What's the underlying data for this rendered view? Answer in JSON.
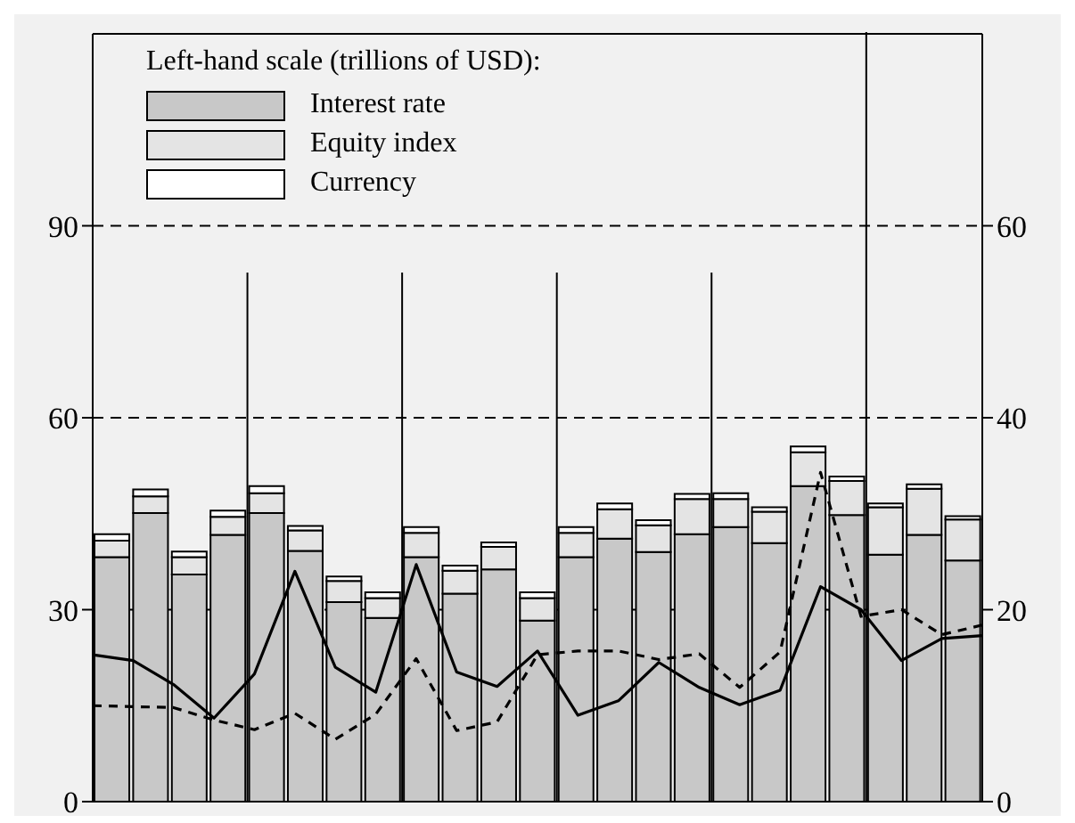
{
  "chart_data": [
    {
      "type": "bar",
      "legend_title": "Left-hand scale (trillions of USD):",
      "stacked": true,
      "categories": [
        null,
        null,
        null,
        null,
        null,
        null,
        null,
        null,
        null,
        null,
        null,
        null,
        null,
        null,
        null,
        null,
        null,
        null,
        null,
        null,
        null,
        null,
        null
      ],
      "tick_labels": "y",
      "ylim": [
        0,
        120
      ],
      "yticks": [
        0,
        30,
        60,
        90
      ],
      "grid": "y",
      "legend": "top left",
      "series": [
        {
          "name": "Interest rate",
          "color": "#c8c8c8",
          "values": [
            38.2,
            45.1,
            35.5,
            41.7,
            45.1,
            39.2,
            31.2,
            28.7,
            38.2,
            32.5,
            36.3,
            28.3,
            38.2,
            41.1,
            39.0,
            41.8,
            42.9,
            40.4,
            49.3,
            44.8,
            38.6,
            41.7,
            37.7
          ]
        },
        {
          "name": "Equity index",
          "color": "#e4e4e4",
          "values": [
            2.6,
            2.6,
            2.7,
            2.8,
            3.1,
            3.2,
            3.3,
            3.1,
            3.8,
            3.6,
            3.5,
            3.5,
            3.8,
            4.6,
            4.2,
            5.5,
            4.4,
            4.9,
            5.3,
            5.3,
            7.4,
            7.2,
            6.4
          ]
        },
        {
          "name": "Currency",
          "color": "#ffffff",
          "values": [
            1.0,
            1.1,
            0.9,
            1.0,
            1.1,
            0.7,
            0.7,
            0.9,
            0.9,
            0.8,
            0.7,
            0.9,
            0.9,
            0.9,
            0.8,
            0.8,
            0.9,
            0.7,
            0.9,
            0.7,
            0.6,
            0.7,
            0.5
          ]
        }
      ]
    },
    {
      "type": "line",
      "categories": [
        null,
        null,
        null,
        null,
        null,
        null,
        null,
        null,
        null,
        null,
        null,
        null,
        null,
        null,
        null,
        null,
        null,
        null,
        null,
        null,
        null,
        null,
        null
      ],
      "tick_labels": "y",
      "ylim": [
        0,
        80
      ],
      "yticks": [
        0,
        20,
        40,
        60
      ],
      "marker": "none",
      "series": [
        {
          "color": "#000000",
          "line_style": "solid",
          "values": [
            15.3,
            14.7,
            12.2,
            8.7,
            13.3,
            24.0,
            14.0,
            11.4,
            24.7,
            13.5,
            12.0,
            15.7,
            9.0,
            10.5,
            14.5,
            11.9,
            10.1,
            11.6,
            22.4,
            20.0,
            14.7,
            17.0,
            17.3
          ]
        },
        {
          "color": "#000000",
          "line_style": "dashed",
          "values": [
            10.0,
            9.9,
            9.8,
            8.5,
            7.5,
            9.2,
            6.5,
            9.1,
            14.9,
            7.4,
            8.3,
            15.3,
            15.7,
            15.7,
            14.8,
            15.4,
            11.9,
            15.6,
            34.3,
            19.3,
            20.0,
            17.4,
            18.4
          ]
        }
      ]
    }
  ]
}
